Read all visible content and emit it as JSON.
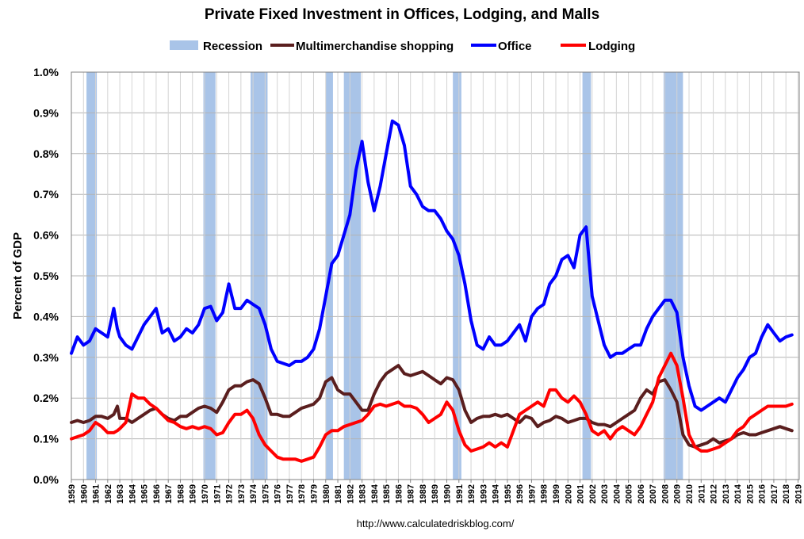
{
  "chart_data": {
    "type": "line",
    "title": "Private Fixed Investment in Offices, Lodging, and Malls",
    "ylabel": "Percent of GDP",
    "xlabel": "",
    "source": "http://www.calculatedriskblog.com/",
    "xlim": [
      1959,
      2019.1
    ],
    "ylim": [
      0,
      1.0
    ],
    "yticks": [
      "0.0%",
      "0.1%",
      "0.2%",
      "0.3%",
      "0.4%",
      "0.5%",
      "0.6%",
      "0.7%",
      "0.8%",
      "0.9%",
      "1.0%"
    ],
    "xticks": [
      "1959",
      "1960",
      "1961",
      "1962",
      "1963",
      "1964",
      "1965",
      "1966",
      "1967",
      "1968",
      "1969",
      "1970",
      "1971",
      "1972",
      "1973",
      "1974",
      "1975",
      "1976",
      "1977",
      "1978",
      "1979",
      "1980",
      "1981",
      "1982",
      "1983",
      "1984",
      "1985",
      "1986",
      "1987",
      "1988",
      "1989",
      "1990",
      "1991",
      "1992",
      "1993",
      "1994",
      "1995",
      "1996",
      "1997",
      "1998",
      "1999",
      "2000",
      "2001",
      "2002",
      "2003",
      "2004",
      "2005",
      "2006",
      "2007",
      "2008",
      "2009",
      "2010",
      "2011",
      "2012",
      "2013",
      "2014",
      "2015",
      "2016",
      "2017",
      "2018",
      "2019"
    ],
    "grid": true,
    "legend_position": "top",
    "recession": {
      "name": "Recession",
      "color": "#a9c4e8",
      "periods": [
        [
          1960.25,
          1961.1
        ],
        [
          1969.9,
          1970.9
        ],
        [
          1973.8,
          1975.2
        ],
        [
          1980.0,
          1980.6
        ],
        [
          1981.5,
          1982.9
        ],
        [
          1990.5,
          1991.2
        ],
        [
          2001.2,
          2001.9
        ],
        [
          2007.9,
          2009.5
        ]
      ]
    },
    "series": [
      {
        "name": "Multimerchandise shopping",
        "color": "#5a1e1e",
        "x": [
          1959.0,
          1959.5,
          1960.0,
          1960.5,
          1961.0,
          1961.5,
          1962.0,
          1962.5,
          1962.8,
          1963.0,
          1963.5,
          1964.0,
          1964.5,
          1965.0,
          1965.5,
          1966.0,
          1966.5,
          1967.0,
          1967.5,
          1968.0,
          1968.5,
          1969.0,
          1969.5,
          1970.0,
          1970.5,
          1971.0,
          1971.5,
          1972.0,
          1972.5,
          1973.0,
          1973.5,
          1974.0,
          1974.5,
          1975.0,
          1975.5,
          1976.0,
          1976.5,
          1977.0,
          1977.5,
          1978.0,
          1978.5,
          1979.0,
          1979.5,
          1980.0,
          1980.5,
          1981.0,
          1981.5,
          1982.0,
          1982.5,
          1983.0,
          1983.5,
          1984.0,
          1984.5,
          1985.0,
          1985.5,
          1986.0,
          1986.5,
          1987.0,
          1987.5,
          1988.0,
          1988.5,
          1989.0,
          1989.5,
          1990.0,
          1990.5,
          1991.0,
          1991.5,
          1992.0,
          1992.5,
          1993.0,
          1993.5,
          1994.0,
          1994.5,
          1995.0,
          1995.5,
          1996.0,
          1996.5,
          1997.0,
          1997.5,
          1998.0,
          1998.5,
          1999.0,
          1999.5,
          2000.0,
          2000.5,
          2001.0,
          2001.5,
          2002.0,
          2002.5,
          2003.0,
          2003.5,
          2004.0,
          2004.5,
          2005.0,
          2005.5,
          2006.0,
          2006.5,
          2007.0,
          2007.5,
          2008.0,
          2008.5,
          2009.0,
          2009.5,
          2010.0,
          2010.5,
          2011.0,
          2011.5,
          2012.0,
          2012.5,
          2013.0,
          2013.5,
          2014.0,
          2014.5,
          2015.0,
          2015.5,
          2016.0,
          2016.5,
          2017.0,
          2017.5,
          2018.0,
          2018.5
        ],
        "values": [
          0.14,
          0.145,
          0.14,
          0.145,
          0.155,
          0.155,
          0.15,
          0.16,
          0.18,
          0.15,
          0.15,
          0.14,
          0.15,
          0.16,
          0.17,
          0.175,
          0.16,
          0.15,
          0.145,
          0.155,
          0.155,
          0.165,
          0.175,
          0.18,
          0.175,
          0.165,
          0.19,
          0.22,
          0.23,
          0.23,
          0.24,
          0.245,
          0.235,
          0.2,
          0.16,
          0.16,
          0.155,
          0.155,
          0.165,
          0.175,
          0.18,
          0.185,
          0.2,
          0.24,
          0.25,
          0.22,
          0.21,
          0.21,
          0.19,
          0.17,
          0.17,
          0.21,
          0.24,
          0.26,
          0.27,
          0.28,
          0.26,
          0.255,
          0.26,
          0.265,
          0.255,
          0.245,
          0.235,
          0.25,
          0.245,
          0.22,
          0.17,
          0.14,
          0.15,
          0.155,
          0.155,
          0.16,
          0.155,
          0.16,
          0.15,
          0.14,
          0.155,
          0.15,
          0.13,
          0.14,
          0.145,
          0.155,
          0.15,
          0.14,
          0.145,
          0.15,
          0.15,
          0.14,
          0.135,
          0.135,
          0.13,
          0.14,
          0.15,
          0.16,
          0.17,
          0.2,
          0.22,
          0.21,
          0.24,
          0.245,
          0.22,
          0.19,
          0.11,
          0.085,
          0.08,
          0.085,
          0.09,
          0.1,
          0.09,
          0.095,
          0.1,
          0.11,
          0.115,
          0.11,
          0.11,
          0.115,
          0.12,
          0.125,
          0.13,
          0.125,
          0.12
        ]
      },
      {
        "name": "Office",
        "color": "#0000ff",
        "x": [
          1959.0,
          1959.5,
          1960.0,
          1960.5,
          1961.0,
          1961.5,
          1962.0,
          1962.5,
          1962.8,
          1963.0,
          1963.5,
          1964.0,
          1964.5,
          1965.0,
          1965.5,
          1966.0,
          1966.5,
          1967.0,
          1967.5,
          1968.0,
          1968.5,
          1969.0,
          1969.5,
          1970.0,
          1970.5,
          1971.0,
          1971.5,
          1972.0,
          1972.5,
          1973.0,
          1973.5,
          1974.0,
          1974.5,
          1975.0,
          1975.5,
          1976.0,
          1976.5,
          1977.0,
          1977.5,
          1978.0,
          1978.5,
          1979.0,
          1979.5,
          1980.0,
          1980.5,
          1981.0,
          1981.5,
          1982.0,
          1982.5,
          1983.0,
          1983.5,
          1984.0,
          1984.5,
          1985.0,
          1985.5,
          1986.0,
          1986.5,
          1987.0,
          1987.5,
          1988.0,
          1988.5,
          1989.0,
          1989.5,
          1990.0,
          1990.5,
          1991.0,
          1991.5,
          1992.0,
          1992.5,
          1993.0,
          1993.5,
          1994.0,
          1994.5,
          1995.0,
          1995.5,
          1996.0,
          1996.5,
          1997.0,
          1997.5,
          1998.0,
          1998.5,
          1999.0,
          1999.5,
          2000.0,
          2000.5,
          2001.0,
          2001.5,
          2002.0,
          2002.5,
          2003.0,
          2003.5,
          2004.0,
          2004.5,
          2005.0,
          2005.5,
          2006.0,
          2006.5,
          2007.0,
          2007.5,
          2008.0,
          2008.5,
          2009.0,
          2009.5,
          2010.0,
          2010.5,
          2011.0,
          2011.5,
          2012.0,
          2012.5,
          2013.0,
          2013.5,
          2014.0,
          2014.5,
          2015.0,
          2015.5,
          2016.0,
          2016.5,
          2017.0,
          2017.5,
          2018.0,
          2018.5
        ],
        "values": [
          0.31,
          0.35,
          0.33,
          0.34,
          0.37,
          0.36,
          0.35,
          0.42,
          0.37,
          0.35,
          0.33,
          0.32,
          0.35,
          0.38,
          0.4,
          0.42,
          0.36,
          0.37,
          0.34,
          0.35,
          0.37,
          0.36,
          0.38,
          0.42,
          0.425,
          0.39,
          0.41,
          0.48,
          0.42,
          0.42,
          0.44,
          0.43,
          0.42,
          0.38,
          0.32,
          0.29,
          0.285,
          0.28,
          0.29,
          0.29,
          0.3,
          0.32,
          0.37,
          0.45,
          0.53,
          0.55,
          0.6,
          0.65,
          0.76,
          0.83,
          0.73,
          0.66,
          0.72,
          0.8,
          0.88,
          0.87,
          0.82,
          0.72,
          0.7,
          0.67,
          0.66,
          0.66,
          0.64,
          0.61,
          0.59,
          0.55,
          0.48,
          0.39,
          0.33,
          0.32,
          0.35,
          0.33,
          0.33,
          0.34,
          0.36,
          0.38,
          0.34,
          0.4,
          0.42,
          0.43,
          0.48,
          0.5,
          0.54,
          0.55,
          0.52,
          0.6,
          0.62,
          0.45,
          0.39,
          0.33,
          0.3,
          0.31,
          0.31,
          0.32,
          0.33,
          0.33,
          0.37,
          0.4,
          0.42,
          0.44,
          0.44,
          0.41,
          0.3,
          0.23,
          0.18,
          0.17,
          0.18,
          0.19,
          0.2,
          0.19,
          0.22,
          0.25,
          0.27,
          0.3,
          0.31,
          0.35,
          0.38,
          0.36,
          0.34,
          0.35,
          0.355
        ]
      },
      {
        "name": "Lodging",
        "color": "#ff0000",
        "x": [
          1959.0,
          1959.5,
          1960.0,
          1960.5,
          1961.0,
          1961.5,
          1962.0,
          1962.5,
          1962.8,
          1963.0,
          1963.5,
          1964.0,
          1964.5,
          1965.0,
          1965.5,
          1966.0,
          1966.5,
          1967.0,
          1967.5,
          1968.0,
          1968.5,
          1969.0,
          1969.5,
          1970.0,
          1970.5,
          1971.0,
          1971.5,
          1972.0,
          1972.5,
          1973.0,
          1973.5,
          1974.0,
          1974.5,
          1975.0,
          1975.5,
          1976.0,
          1976.5,
          1977.0,
          1977.5,
          1978.0,
          1978.5,
          1979.0,
          1979.5,
          1980.0,
          1980.5,
          1981.0,
          1981.5,
          1982.0,
          1982.5,
          1983.0,
          1983.5,
          1984.0,
          1984.5,
          1985.0,
          1985.5,
          1986.0,
          1986.5,
          1987.0,
          1987.5,
          1988.0,
          1988.5,
          1989.0,
          1989.5,
          1990.0,
          1990.5,
          1991.0,
          1991.5,
          1992.0,
          1992.5,
          1993.0,
          1993.5,
          1994.0,
          1994.5,
          1995.0,
          1995.5,
          1996.0,
          1996.5,
          1997.0,
          1997.5,
          1998.0,
          1998.5,
          1999.0,
          1999.5,
          2000.0,
          2000.5,
          2001.0,
          2001.5,
          2002.0,
          2002.5,
          2003.0,
          2003.5,
          2004.0,
          2004.5,
          2005.0,
          2005.5,
          2006.0,
          2006.5,
          2007.0,
          2007.5,
          2008.0,
          2008.5,
          2009.0,
          2009.5,
          2010.0,
          2010.5,
          2011.0,
          2011.5,
          2012.0,
          2012.5,
          2013.0,
          2013.5,
          2014.0,
          2014.5,
          2015.0,
          2015.5,
          2016.0,
          2016.5,
          2017.0,
          2017.5,
          2018.0,
          2018.5
        ],
        "values": [
          0.1,
          0.105,
          0.11,
          0.12,
          0.14,
          0.13,
          0.115,
          0.115,
          0.12,
          0.125,
          0.14,
          0.21,
          0.2,
          0.2,
          0.185,
          0.175,
          0.16,
          0.145,
          0.14,
          0.13,
          0.125,
          0.13,
          0.125,
          0.13,
          0.125,
          0.11,
          0.115,
          0.14,
          0.16,
          0.16,
          0.17,
          0.15,
          0.11,
          0.085,
          0.07,
          0.055,
          0.05,
          0.05,
          0.05,
          0.045,
          0.05,
          0.055,
          0.08,
          0.11,
          0.12,
          0.12,
          0.13,
          0.135,
          0.14,
          0.145,
          0.16,
          0.18,
          0.185,
          0.18,
          0.185,
          0.19,
          0.18,
          0.18,
          0.175,
          0.16,
          0.14,
          0.15,
          0.16,
          0.19,
          0.17,
          0.12,
          0.085,
          0.07,
          0.075,
          0.08,
          0.09,
          0.08,
          0.09,
          0.08,
          0.12,
          0.16,
          0.17,
          0.18,
          0.19,
          0.18,
          0.22,
          0.22,
          0.2,
          0.19,
          0.205,
          0.19,
          0.16,
          0.12,
          0.11,
          0.12,
          0.1,
          0.12,
          0.13,
          0.12,
          0.11,
          0.13,
          0.16,
          0.19,
          0.25,
          0.28,
          0.31,
          0.28,
          0.2,
          0.11,
          0.08,
          0.07,
          0.07,
          0.075,
          0.08,
          0.09,
          0.1,
          0.12,
          0.13,
          0.15,
          0.16,
          0.17,
          0.18,
          0.18,
          0.18,
          0.18,
          0.185
        ]
      }
    ]
  }
}
